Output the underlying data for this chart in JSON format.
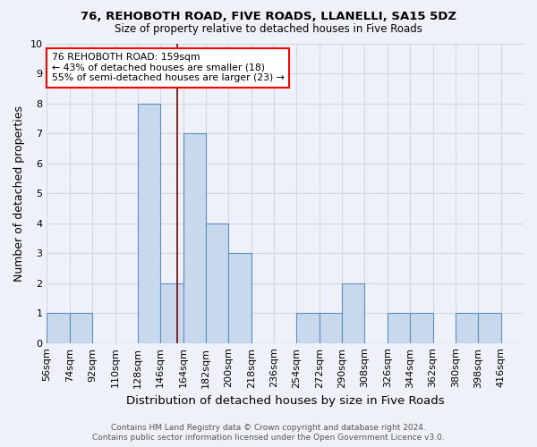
{
  "title1": "76, REHOBOTH ROAD, FIVE ROADS, LLANELLI, SA15 5DZ",
  "title2": "Size of property relative to detached houses in Five Roads",
  "xlabel": "Distribution of detached houses by size in Five Roads",
  "ylabel": "Number of detached properties",
  "bin_labels": [
    "56sqm",
    "74sqm",
    "92sqm",
    "110sqm",
    "128sqm",
    "146sqm",
    "164sqm",
    "182sqm",
    "200sqm",
    "218sqm",
    "236sqm",
    "254sqm",
    "272sqm",
    "290sqm",
    "308sqm",
    "326sqm",
    "344sqm",
    "362sqm",
    "380sqm",
    "398sqm",
    "416sqm"
  ],
  "bar_values": [
    1,
    1,
    0,
    0,
    8,
    2,
    7,
    4,
    3,
    0,
    0,
    1,
    1,
    2,
    0,
    1,
    1,
    0,
    1,
    1,
    0
  ],
  "bar_color": "#c8d9ee",
  "bar_edge_color": "#5a8fc0",
  "annotation_line1": "76 REHOBOTH ROAD: 159sqm",
  "annotation_line2": "← 43% of detached houses are smaller (18)",
  "annotation_line3": "55% of semi-detached houses are larger (23) →",
  "annotation_box_color": "white",
  "annotation_box_edge_color": "red",
  "subject_line_color": "#7b0000",
  "ylim": [
    0,
    10
  ],
  "yticks": [
    0,
    1,
    2,
    3,
    4,
    5,
    6,
    7,
    8,
    9,
    10
  ],
  "footer1": "Contains HM Land Registry data © Crown copyright and database right 2024.",
  "footer2": "Contains public sector information licensed under the Open Government Licence v3.0.",
  "bin_width": 18,
  "grid_color": "#d0d8e4",
  "background_color": "#eef2f8"
}
